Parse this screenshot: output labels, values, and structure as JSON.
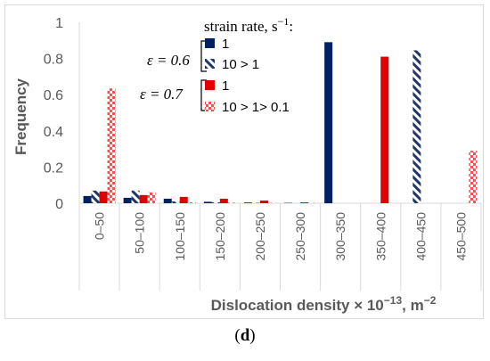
{
  "panel_label": {
    "open": "(",
    "letter": "d",
    "close": ")"
  },
  "colors": {
    "navy": "#002060",
    "red": "#e00000",
    "hatch_navy": "#1f3864",
    "check_red": "#ff4d4d",
    "grid": "#d9d9d9",
    "text": "#595959"
  },
  "legend": {
    "heading": "strain rate, s",
    "heading_sup": "−1",
    "heading_tail": ":",
    "group1_label": "ε = 0.6",
    "group2_label": "ε = 0.7",
    "entries": [
      "1",
      "10 > 1",
      "1",
      "10 > 1> 0.1"
    ]
  },
  "chart_data": {
    "type": "bar",
    "xlabel": "Dislocation density × 10",
    "xlabel_sup": "−13",
    "xlabel_tail": ", m",
    "xlabel_sup2": "−2",
    "ylabel": "Frequency",
    "ylim": [
      0,
      1
    ],
    "yticks": [
      "0",
      "0.2",
      "0.4",
      "0.6",
      "0.8",
      "1"
    ],
    "yticks_values": [
      0,
      0.2,
      0.4,
      0.6,
      0.8,
      1
    ],
    "grid": false,
    "categories": [
      "0–50",
      "50–100",
      "100–150",
      "150–200",
      "200–250",
      "250–300",
      "300–350",
      "350–400",
      "400–450",
      "450–500"
    ],
    "series": [
      {
        "name": "ε = 0.6, strain rate 1",
        "fill": "solid-navy",
        "values": [
          0.04,
          0.03,
          0.025,
          0.008,
          0.004,
          0.002,
          0.89,
          0,
          0,
          0
        ]
      },
      {
        "name": "ε = 0.6, strain rate 10 > 1",
        "fill": "hatch-navy",
        "values": [
          0.07,
          0.07,
          0.01,
          0.005,
          0.002,
          0,
          0,
          0,
          0.845,
          0
        ]
      },
      {
        "name": "ε = 0.7, strain rate 1",
        "fill": "solid-red",
        "values": [
          0.065,
          0.045,
          0.035,
          0.025,
          0.015,
          0.005,
          0,
          0.81,
          0,
          0
        ]
      },
      {
        "name": "ε = 0.7, strain rate 10 > 1> 0.1",
        "fill": "check-red",
        "values": [
          0.635,
          0.06,
          0.005,
          0.003,
          0.002,
          0.001,
          0,
          0,
          0,
          0.29
        ]
      }
    ]
  }
}
